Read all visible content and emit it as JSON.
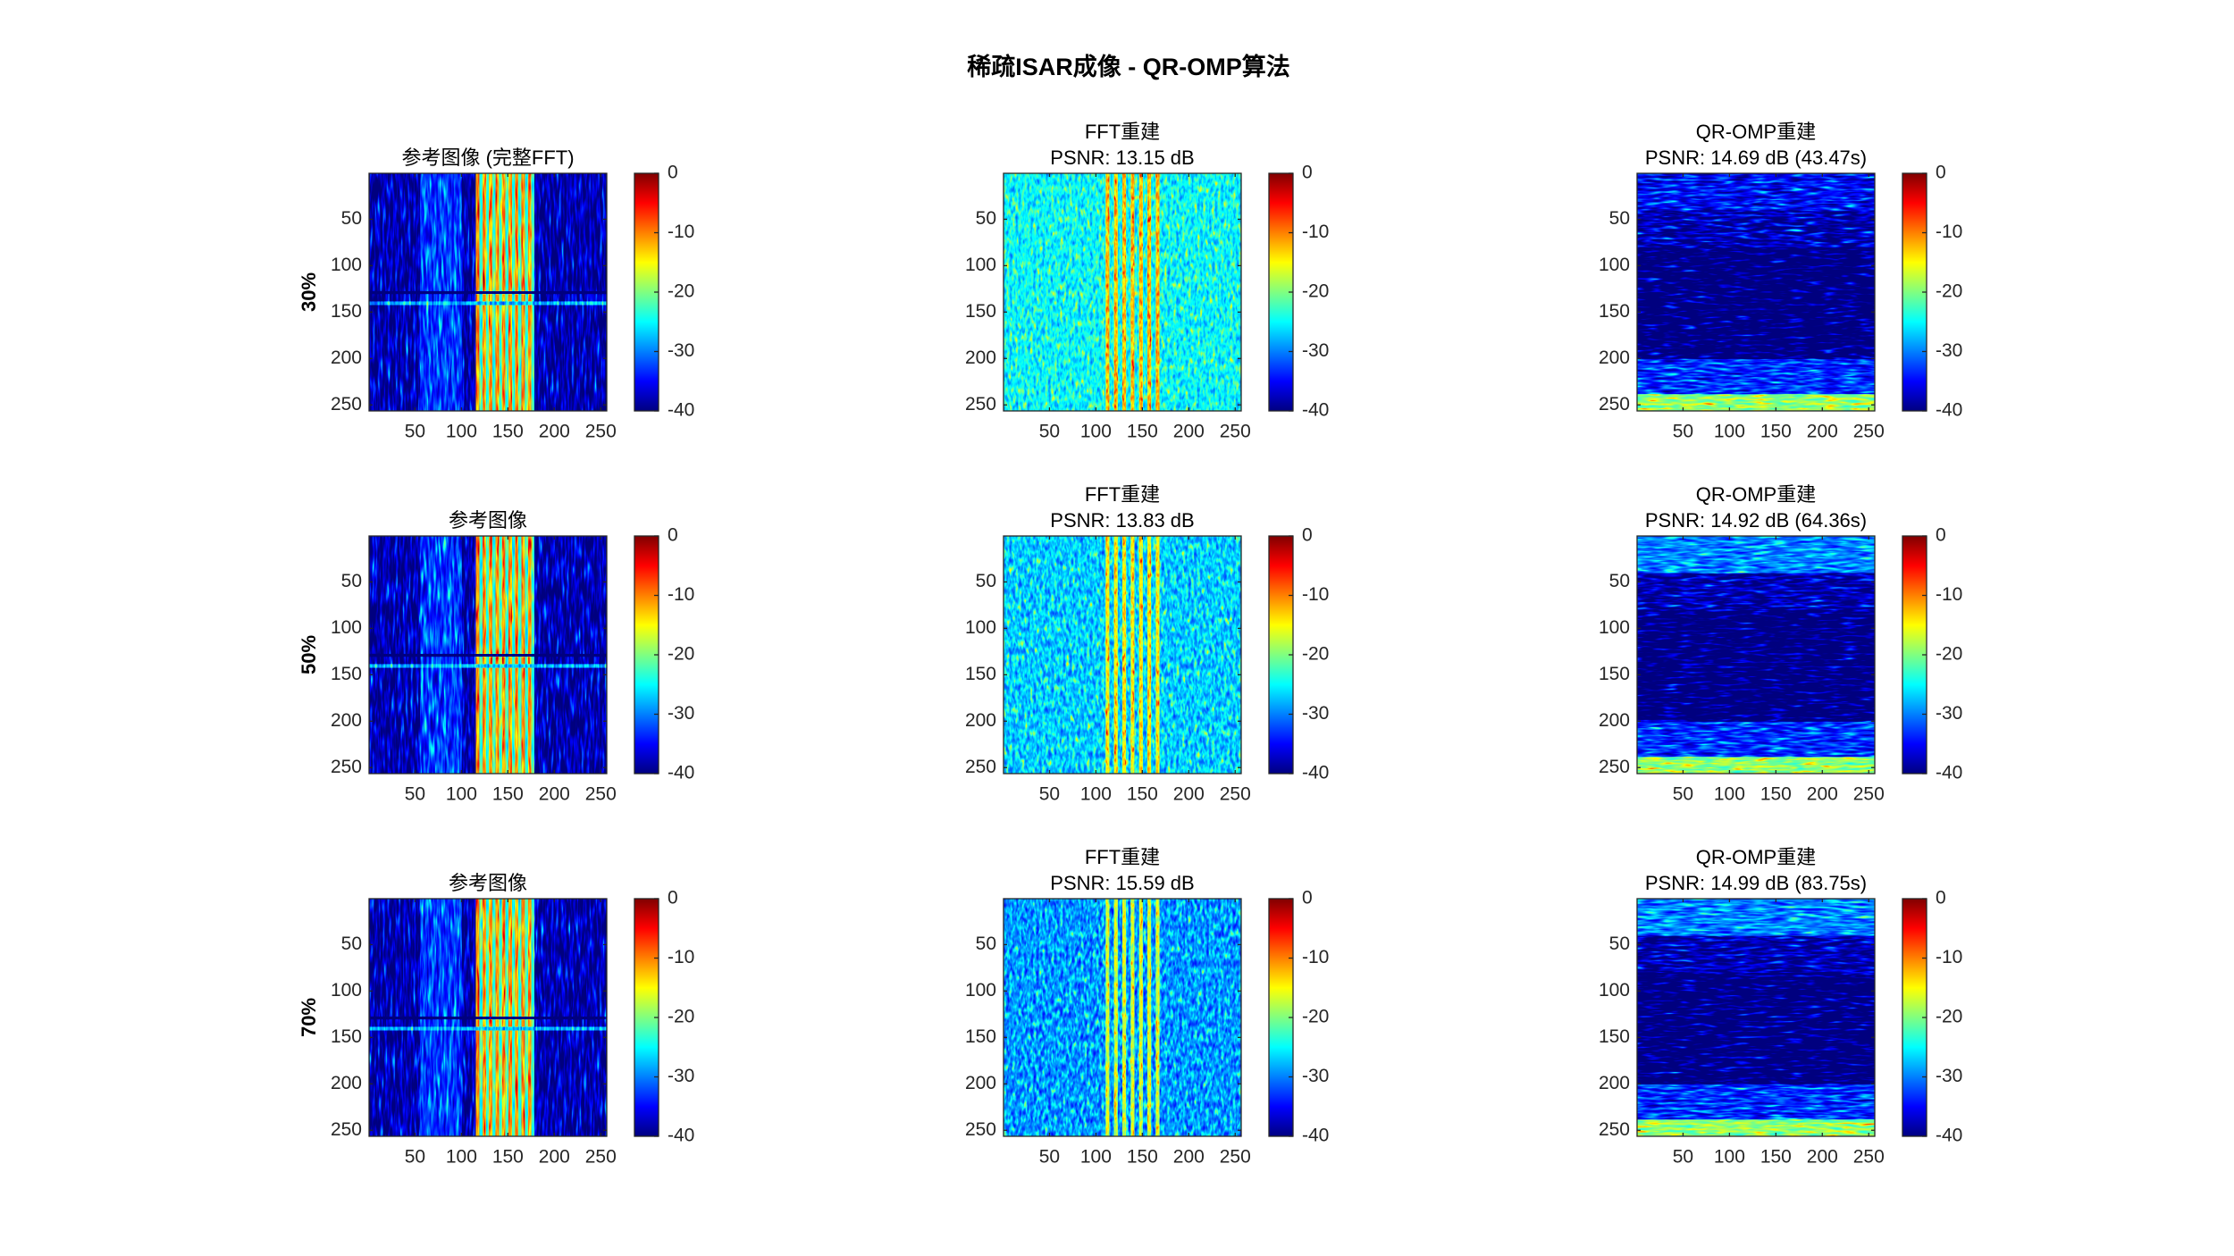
{
  "title": "稀疏ISAR成像 - QR-OMP算法",
  "chart_data": [
    {
      "type": "heatmap",
      "title": [
        "参考图像 (完整FFT)"
      ],
      "ylabel": "30%",
      "colormap": "jet",
      "xlim": [
        0.5,
        256.5
      ],
      "ylim": [
        0.5,
        256.5
      ],
      "ydir": "reverse",
      "xticks": [
        50,
        100,
        150,
        200,
        250
      ],
      "yticks": [
        50,
        100,
        150,
        200,
        250
      ],
      "colorbar": {
        "clim": [
          -40,
          0
        ],
        "ticks": [
          -40,
          -30,
          -20,
          -10,
          0
        ]
      }
    },
    {
      "type": "heatmap",
      "title": [
        "FFT重建",
        "PSNR: 13.15 dB"
      ],
      "colormap": "jet",
      "xlim": [
        0.5,
        256.5
      ],
      "ylim": [
        0.5,
        256.5
      ],
      "ydir": "reverse",
      "xticks": [
        50,
        100,
        150,
        200,
        250
      ],
      "yticks": [
        50,
        100,
        150,
        200,
        250
      ],
      "colorbar": {
        "clim": [
          -40,
          0
        ],
        "ticks": [
          -40,
          -30,
          -20,
          -10,
          0
        ]
      }
    },
    {
      "type": "heatmap",
      "title": [
        "QR-OMP重建",
        "PSNR: 14.69 dB (43.47s)"
      ],
      "colormap": "jet",
      "xlim": [
        0.5,
        256.5
      ],
      "ylim": [
        0.5,
        256.5
      ],
      "ydir": "reverse",
      "xticks": [
        50,
        100,
        150,
        200,
        250
      ],
      "yticks": [
        50,
        100,
        150,
        200,
        250
      ],
      "colorbar": {
        "clim": [
          -40,
          0
        ],
        "ticks": [
          -40,
          -30,
          -20,
          -10,
          0
        ]
      }
    },
    {
      "type": "heatmap",
      "title": [
        "参考图像"
      ],
      "ylabel": "50%",
      "colormap": "jet",
      "xlim": [
        0.5,
        256.5
      ],
      "ylim": [
        0.5,
        256.5
      ],
      "ydir": "reverse",
      "xticks": [
        50,
        100,
        150,
        200,
        250
      ],
      "yticks": [
        50,
        100,
        150,
        200,
        250
      ],
      "colorbar": {
        "clim": [
          -40,
          0
        ],
        "ticks": [
          -40,
          -30,
          -20,
          -10,
          0
        ]
      }
    },
    {
      "type": "heatmap",
      "title": [
        "FFT重建",
        "PSNR: 13.83 dB"
      ],
      "colormap": "jet",
      "xlim": [
        0.5,
        256.5
      ],
      "ylim": [
        0.5,
        256.5
      ],
      "ydir": "reverse",
      "xticks": [
        50,
        100,
        150,
        200,
        250
      ],
      "yticks": [
        50,
        100,
        150,
        200,
        250
      ],
      "colorbar": {
        "clim": [
          -40,
          0
        ],
        "ticks": [
          -40,
          -30,
          -20,
          -10,
          0
        ]
      }
    },
    {
      "type": "heatmap",
      "title": [
        "QR-OMP重建",
        "PSNR: 14.92 dB (64.36s)"
      ],
      "colormap": "jet",
      "xlim": [
        0.5,
        256.5
      ],
      "ylim": [
        0.5,
        256.5
      ],
      "ydir": "reverse",
      "xticks": [
        50,
        100,
        150,
        200,
        250
      ],
      "yticks": [
        50,
        100,
        150,
        200,
        250
      ],
      "colorbar": {
        "clim": [
          -40,
          0
        ],
        "ticks": [
          -40,
          -30,
          -20,
          -10,
          0
        ]
      }
    },
    {
      "type": "heatmap",
      "title": [
        "参考图像"
      ],
      "ylabel": "70%",
      "colormap": "jet",
      "xlim": [
        0.5,
        256.5
      ],
      "ylim": [
        0.5,
        256.5
      ],
      "ydir": "reverse",
      "xticks": [
        50,
        100,
        150,
        200,
        250
      ],
      "yticks": [
        50,
        100,
        150,
        200,
        250
      ],
      "colorbar": {
        "clim": [
          -40,
          0
        ],
        "ticks": [
          -40,
          -30,
          -20,
          -10,
          0
        ]
      }
    },
    {
      "type": "heatmap",
      "title": [
        "FFT重建",
        "PSNR: 15.59 dB"
      ],
      "colormap": "jet",
      "xlim": [
        0.5,
        256.5
      ],
      "ylim": [
        0.5,
        256.5
      ],
      "ydir": "reverse",
      "xticks": [
        50,
        100,
        150,
        200,
        250
      ],
      "yticks": [
        50,
        100,
        150,
        200,
        250
      ],
      "colorbar": {
        "clim": [
          -40,
          0
        ],
        "ticks": [
          -40,
          -30,
          -20,
          -10,
          0
        ]
      }
    },
    {
      "type": "heatmap",
      "title": [
        "QR-OMP重建",
        "PSNR: 14.99 dB (83.75s)"
      ],
      "colormap": "jet",
      "xlim": [
        0.5,
        256.5
      ],
      "ylim": [
        0.5,
        256.5
      ],
      "ydir": "reverse",
      "xticks": [
        50,
        100,
        150,
        200,
        250
      ],
      "yticks": [
        50,
        100,
        150,
        200,
        250
      ],
      "colorbar": {
        "clim": [
          -40,
          0
        ],
        "ticks": [
          -40,
          -30,
          -20,
          -10,
          0
        ]
      }
    }
  ]
}
